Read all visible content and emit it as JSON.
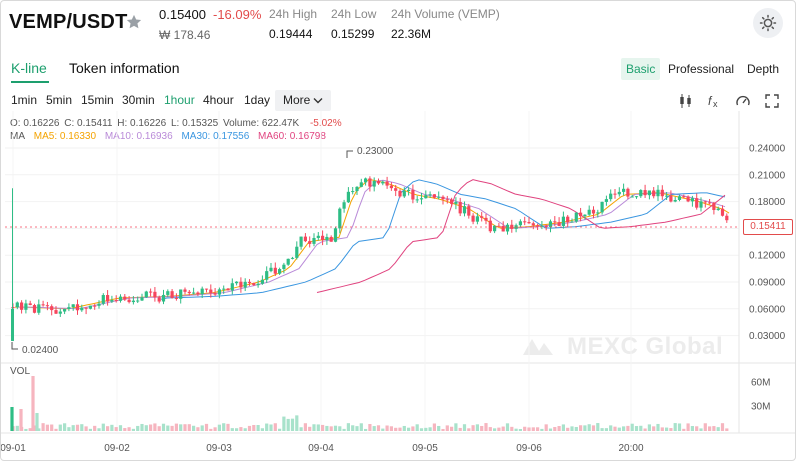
{
  "header": {
    "pair": "VEMP/USDT",
    "price": "0.15400",
    "change": "-16.09%",
    "fiat_price": "₩ 178.46",
    "stats": [
      {
        "label": "24h High",
        "value": "0.19444"
      },
      {
        "label": "24h Low",
        "value": "0.15299"
      },
      {
        "label": "24h Volume (VEMP)",
        "value": "22.36M"
      }
    ]
  },
  "tabs": {
    "kline": "K-line",
    "token": "Token information"
  },
  "modes": [
    "Basic",
    "Professional",
    "Depth"
  ],
  "intervals": [
    "1min",
    "5min",
    "15min",
    "30min",
    "1hour",
    "4hour",
    "1day"
  ],
  "more_label": "More",
  "legend": {
    "o": "O: 0.16226",
    "c": "C: 0.15411",
    "h": "H: 0.16226",
    "l": "L: 0.15325",
    "vol": "Volume: 622.47K",
    "pct": "-5.02%",
    "ma": "MA",
    "ma5": "MA5: 0.16330",
    "ma10": "MA10: 0.16936",
    "ma30": "MA30: 0.17556",
    "ma60": "MA60: 0.16798"
  },
  "colors": {
    "up": "#2ebd85",
    "down": "#f6465d",
    "accent": "#1d9f6e",
    "ma5": "#f4a300",
    "ma10": "#b98ad8",
    "ma30": "#3a96e0",
    "ma60": "#e0437f"
  },
  "chart": {
    "y_ticks": [
      "0.24000",
      "0.21000",
      "0.18000",
      "0.15000",
      "0.12000",
      "0.09000",
      "0.06000",
      "0.03000"
    ],
    "last_price": "0.15411",
    "max_marker": "0.23000",
    "min_marker": "0.02400",
    "vol_label": "VOL",
    "vol_ticks": [
      "60M",
      "30M"
    ],
    "x_ticks": [
      "09-01",
      "09-02",
      "09-03",
      "09-04",
      "09-05",
      "09-06",
      "20:00"
    ],
    "watermark": "MEXC Global"
  }
}
